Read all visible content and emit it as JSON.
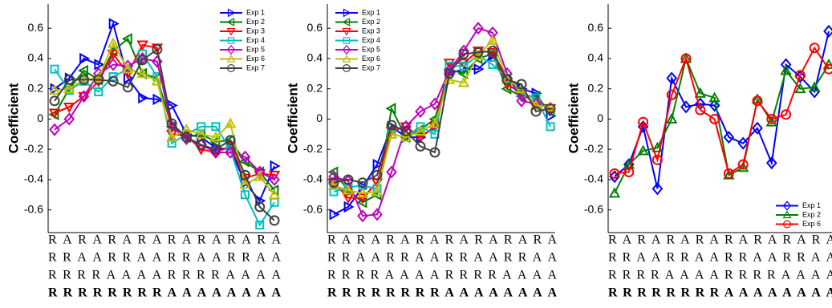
{
  "chart_data": [
    {
      "type": "line",
      "ylabel": "Coefficient",
      "legend": "upper right",
      "x_label_rows": [
        "RARARARARARARARA",
        "RRAARRAARRAARRAA",
        "RRRRAAAARRRRAAAA",
        "RRRRRRRRAAAAAAAA"
      ],
      "ylim": [
        -0.75,
        0.76
      ],
      "yticks": [
        -0.6,
        -0.4,
        -0.2,
        0,
        0.2,
        0.4,
        0.6
      ],
      "series": [
        {
          "name": "Exp 1",
          "color": "#0000ff",
          "marker": "triangle-right",
          "values": [
            0.2,
            0.27,
            0.4,
            0.36,
            0.63,
            0.27,
            0.14,
            0.13,
            0.09,
            -0.1,
            -0.12,
            -0.19,
            -0.2,
            -0.42,
            -0.54,
            -0.31
          ]
        },
        {
          "name": "Exp 2",
          "color": "#008000",
          "marker": "triangle-left",
          "values": [
            0.03,
            0.2,
            0.32,
            0.26,
            0.45,
            0.53,
            0.3,
            0.27,
            -0.05,
            -0.12,
            -0.1,
            -0.15,
            -0.14,
            -0.28,
            -0.35,
            -0.47
          ]
        },
        {
          "name": "Exp 3",
          "color": "#ff0000",
          "marker": "triangle-down",
          "values": [
            0.04,
            0.08,
            0.15,
            0.25,
            0.43,
            0.3,
            0.49,
            0.47,
            -0.1,
            -0.11,
            -0.2,
            -0.22,
            -0.18,
            -0.39,
            -0.36,
            -0.37
          ]
        },
        {
          "name": "Exp 4",
          "color": "#00bfbf",
          "marker": "square",
          "values": [
            0.33,
            0.19,
            0.25,
            0.18,
            0.28,
            0.33,
            0.43,
            0.28,
            -0.16,
            -0.1,
            -0.05,
            -0.05,
            -0.2,
            -0.5,
            -0.7,
            -0.55
          ]
        },
        {
          "name": "Exp 5",
          "color": "#bf00bf",
          "marker": "diamond",
          "values": [
            -0.07,
            0,
            0.15,
            0.3,
            0.36,
            0.35,
            0.4,
            0.38,
            -0.05,
            -0.13,
            -0.17,
            -0.22,
            -0.22,
            -0.25,
            -0.35,
            -0.4
          ]
        },
        {
          "name": "Exp 6",
          "color": "#bfbf00",
          "marker": "triangle-up",
          "values": [
            0.19,
            0.2,
            0.26,
            0.27,
            0.5,
            0.33,
            0.3,
            0.25,
            -0.12,
            -0.07,
            -0.1,
            -0.12,
            -0.03,
            -0.43,
            -0.38,
            -0.5
          ]
        },
        {
          "name": "Exp 7",
          "color": "#404040",
          "marker": "circle",
          "values": [
            0.12,
            0.26,
            0.26,
            0.26,
            0.25,
            0.21,
            0.39,
            0.46,
            -0.03,
            -0.12,
            -0.17,
            -0.2,
            -0.14,
            -0.37,
            -0.58,
            -0.67
          ]
        }
      ]
    },
    {
      "type": "line",
      "ylabel": "Coefficient",
      "legend": "upper left",
      "x_label_rows": [
        "RARARARARARARARA",
        "RRAARRAARRAARRAA",
        "RRRRAAAARRRRAAAA",
        "RRRRRRRRAAAAAAAA"
      ],
      "ylim": [
        -0.75,
        0.76
      ],
      "yticks": [
        -0.6,
        -0.4,
        -0.2,
        0,
        0.2,
        0.4,
        0.6
      ],
      "series": [
        {
          "name": "Exp 1",
          "color": "#0000ff",
          "marker": "triangle-right",
          "values": [
            -0.63,
            -0.58,
            -0.45,
            -0.3,
            -0.05,
            -0.12,
            -0.12,
            -0.05,
            0.3,
            0.33,
            0.33,
            0.42,
            0.27,
            0.2,
            0.17,
            0.02
          ]
        },
        {
          "name": "Exp 2",
          "color": "#008000",
          "marker": "triangle-left",
          "values": [
            -0.35,
            -0.47,
            -0.55,
            -0.5,
            0.07,
            -0.12,
            -0.07,
            0,
            0.33,
            0.3,
            0.4,
            0.43,
            0.2,
            0.15,
            0.15,
            0.05
          ]
        },
        {
          "name": "Exp 3",
          "color": "#ff0000",
          "marker": "triangle-down",
          "values": [
            -0.42,
            -0.52,
            -0.52,
            -0.42,
            -0.08,
            -0.05,
            -0.12,
            -0.05,
            0.37,
            0.37,
            0.45,
            0.44,
            0.23,
            0.17,
            0.1,
            0.07
          ]
        },
        {
          "name": "Exp 4",
          "color": "#00bfbf",
          "marker": "square",
          "values": [
            -0.48,
            -0.45,
            -0.44,
            -0.46,
            -0.1,
            -0.12,
            -0.05,
            -0.1,
            0.35,
            0.35,
            0.42,
            0.36,
            0.27,
            0.17,
            0.14,
            -0.05
          ]
        },
        {
          "name": "Exp 5",
          "color": "#bf00bf",
          "marker": "diamond",
          "values": [
            -0.38,
            -0.41,
            -0.64,
            -0.63,
            -0.35,
            -0.05,
            0.05,
            0.1,
            0.32,
            0.45,
            0.6,
            0.57,
            0.3,
            0.12,
            0.1,
            0.07
          ]
        },
        {
          "name": "Exp 6",
          "color": "#bfbf00",
          "marker": "triangle-up",
          "values": [
            -0.44,
            -0.47,
            -0.49,
            -0.48,
            -0.1,
            -0.12,
            -0.08,
            -0.03,
            0.26,
            0.24,
            0.42,
            0.52,
            0.26,
            0.2,
            0.09,
            0.08
          ]
        },
        {
          "name": "Exp 7",
          "color": "#404040",
          "marker": "circle",
          "values": [
            -0.42,
            -0.4,
            -0.42,
            -0.37,
            -0.04,
            -0.08,
            -0.18,
            -0.22,
            0.3,
            0.43,
            0.44,
            0.45,
            0.26,
            0.23,
            0.05,
            0.07
          ]
        }
      ]
    },
    {
      "type": "line",
      "ylabel": "Coefficient",
      "legend": "lower right",
      "x_label_rows": [
        "RARARARARARARARA",
        "RRAARRAARRAARRAA",
        "RRRRAAAARRRRAAAA",
        "RRRRRRRRAAAAAAAA"
      ],
      "ylim": [
        -0.75,
        0.76
      ],
      "yticks": [
        -0.6,
        -0.4,
        -0.2,
        0,
        0.2,
        0.4,
        0.6
      ],
      "series": [
        {
          "name": "Exp 1",
          "color": "#0000ff",
          "marker": "diamond",
          "values": [
            -0.38,
            -0.3,
            -0.05,
            -0.46,
            0.27,
            0.08,
            0.1,
            0.09,
            -0.12,
            -0.16,
            -0.06,
            -0.29,
            0.36,
            0.28,
            0.18,
            0.58
          ]
        },
        {
          "name": "Exp 2",
          "color": "#008000",
          "marker": "triangle-up",
          "values": [
            -0.49,
            -0.3,
            -0.21,
            -0.19,
            0,
            0.4,
            0.17,
            0.14,
            -0.37,
            -0.32,
            0.13,
            -0.02,
            0.32,
            0.2,
            0.21,
            0.36
          ]
        },
        {
          "name": "Exp 6",
          "color": "#ff0000",
          "marker": "circle",
          "values": [
            -0.36,
            -0.35,
            -0.02,
            -0.27,
            0.16,
            0.4,
            0.06,
            0,
            -0.36,
            -0.3,
            0.12,
            0,
            0.03,
            0.29,
            0.47,
            0.33
          ]
        }
      ]
    }
  ]
}
